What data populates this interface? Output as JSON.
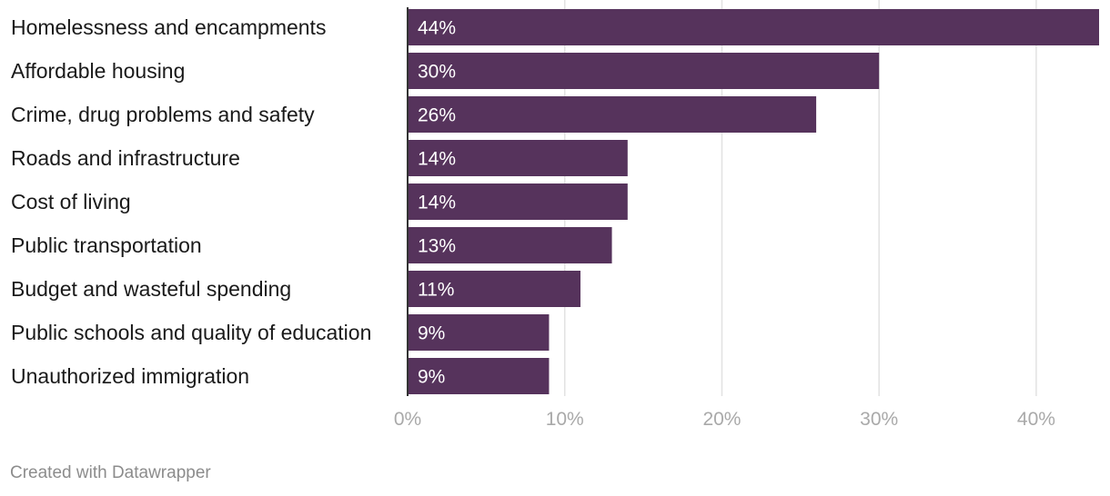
{
  "chart_data": {
    "type": "bar",
    "orientation": "horizontal",
    "categories": [
      "Homelessness and encampments",
      "Affordable housing",
      "Crime, drug problems and safety",
      "Roads and infrastructure",
      "Cost of living",
      "Public transportation",
      "Budget and wasteful spending",
      "Public schools and quality of education",
      "Unauthorized immigration"
    ],
    "values": [
      44,
      30,
      26,
      14,
      14,
      13,
      11,
      9,
      9
    ],
    "data_labels": [
      "44%",
      "30%",
      "26%",
      "14%",
      "14%",
      "13%",
      "11%",
      "9%",
      "9%"
    ],
    "x_ticks": [
      0,
      10,
      20,
      30,
      40
    ],
    "x_tick_labels": [
      "0%",
      "10%",
      "20%",
      "30%",
      "40%"
    ],
    "xlim": [
      0,
      44
    ],
    "grid": true,
    "colors": {
      "bar": "#56335c",
      "grid": "#e2e2e2",
      "axis": "#333333",
      "tick_text": "#a9a9a9"
    }
  },
  "footer": {
    "credit": "Created with Datawrapper"
  }
}
